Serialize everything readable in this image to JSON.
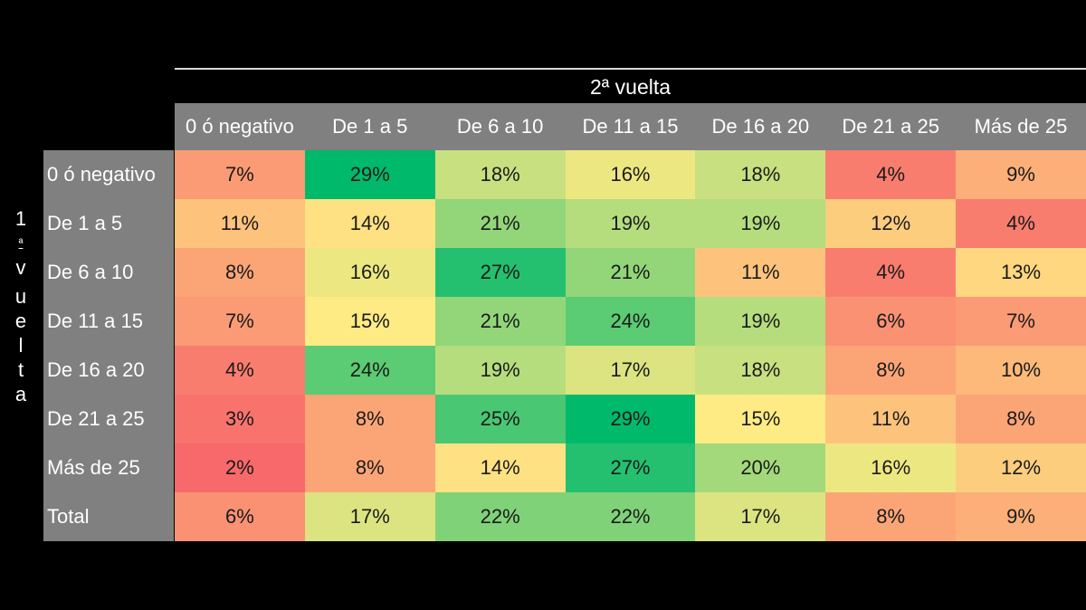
{
  "header": {
    "top_label": "2ª vuelta",
    "side_label_chars": [
      "1",
      "ª",
      "v",
      "u",
      "e",
      "l",
      "t",
      "a"
    ]
  },
  "chart_data": {
    "type": "heatmap",
    "title": "",
    "xlabel": "2ª vuelta",
    "ylabel": "1ª vuelta",
    "columns": [
      "0 ó negativo",
      "De 1 a 5",
      "De 6 a 10",
      "De 11 a 15",
      "De 16 a 20",
      "De 21 a 25",
      "Más de 25"
    ],
    "rows": [
      "0 ó negativo",
      "De 1 a 5",
      "De 6 a 10",
      "De 11 a 15",
      "De 16 a 20",
      "De 21 a 25",
      "Más de 25",
      "Total"
    ],
    "values": [
      [
        7,
        29,
        18,
        16,
        18,
        4,
        9
      ],
      [
        11,
        14,
        21,
        19,
        19,
        12,
        4
      ],
      [
        8,
        16,
        27,
        21,
        11,
        4,
        13
      ],
      [
        7,
        15,
        21,
        24,
        19,
        6,
        7
      ],
      [
        4,
        24,
        19,
        17,
        18,
        8,
        10
      ],
      [
        3,
        8,
        25,
        29,
        15,
        11,
        8
      ],
      [
        2,
        8,
        14,
        27,
        20,
        16,
        12
      ],
      [
        6,
        17,
        22,
        22,
        17,
        8,
        9
      ]
    ],
    "value_suffix": "%",
    "color_scale": {
      "low": "#f8696b",
      "mid": "#ffeb84",
      "high": "#00b96b",
      "range": [
        2,
        29
      ],
      "mid_value": 15
    }
  }
}
